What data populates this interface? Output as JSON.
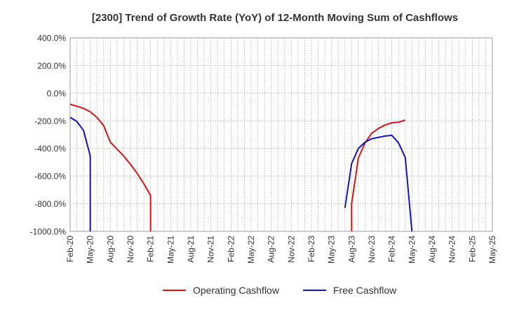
{
  "chart_data": {
    "type": "line",
    "title": "[2300]  Trend of Growth Rate (YoY) of 12-Month Moving Sum of Cashflows",
    "xlabel": "",
    "ylabel": "",
    "ylim": [
      -1000,
      400
    ],
    "y_ticks": [
      400,
      200,
      0,
      -200,
      -400,
      -600,
      -800,
      -1000
    ],
    "y_tick_labels": [
      "400.0%",
      "200.0%",
      "0.0%",
      "-200.0%",
      "-400.0%",
      "-600.0%",
      "-800.0%",
      "-1000.0%"
    ],
    "x_tick_labels": [
      "Feb-20",
      "May-20",
      "Aug-20",
      "Nov-20",
      "Feb-21",
      "May-21",
      "Aug-21",
      "Nov-21",
      "Feb-22",
      "May-22",
      "Aug-22",
      "Nov-22",
      "Feb-23",
      "May-23",
      "Aug-23",
      "Nov-23",
      "Feb-24",
      "May-24",
      "Aug-24",
      "Nov-24",
      "Feb-25",
      "May-25"
    ],
    "x_range": [
      "2020-02",
      "2025-05"
    ],
    "grid": true,
    "legend_position": "bottom",
    "series": [
      {
        "name": "Operating Cashflow",
        "color": "#dd1111",
        "points": [
          [
            "2020-02",
            -80
          ],
          [
            "2020-03",
            -95
          ],
          [
            "2020-04",
            -110
          ],
          [
            "2020-05",
            -135
          ],
          [
            "2020-06",
            -175
          ],
          [
            "2020-07",
            -235
          ],
          [
            "2020-08",
            -355
          ],
          [
            "2020-09",
            -405
          ],
          [
            "2020-10",
            -455
          ],
          [
            "2020-11",
            -515
          ],
          [
            "2020-12",
            -580
          ],
          [
            "2021-01",
            -655
          ],
          [
            "2021-02",
            -740
          ],
          [
            "2021-02",
            -1000
          ]
        ],
        "points_2": [
          [
            "2023-08",
            -1000
          ],
          [
            "2023-08",
            -800
          ],
          [
            "2023-09",
            -470
          ],
          [
            "2023-10",
            -360
          ],
          [
            "2023-11",
            -290
          ],
          [
            "2023-12",
            -255
          ],
          [
            "2024-01",
            -230
          ],
          [
            "2024-02",
            -215
          ],
          [
            "2024-03",
            -210
          ],
          [
            "2024-04",
            -195
          ]
        ]
      },
      {
        "name": "Free Cashflow",
        "color": "#1111cc",
        "points": [
          [
            "2020-02",
            -175
          ],
          [
            "2020-03",
            -205
          ],
          [
            "2020-04",
            -270
          ],
          [
            "2020-05",
            -455
          ],
          [
            "2020-05",
            -1000
          ]
        ],
        "points_2": [
          [
            "2023-07",
            -830
          ],
          [
            "2023-08",
            -510
          ],
          [
            "2023-09",
            -400
          ],
          [
            "2023-10",
            -355
          ],
          [
            "2023-11",
            -330
          ],
          [
            "2023-12",
            -320
          ],
          [
            "2024-01",
            -310
          ],
          [
            "2024-02",
            -305
          ],
          [
            "2024-03",
            -360
          ],
          [
            "2024-04",
            -465
          ],
          [
            "2024-05",
            -1000
          ]
        ]
      }
    ]
  }
}
